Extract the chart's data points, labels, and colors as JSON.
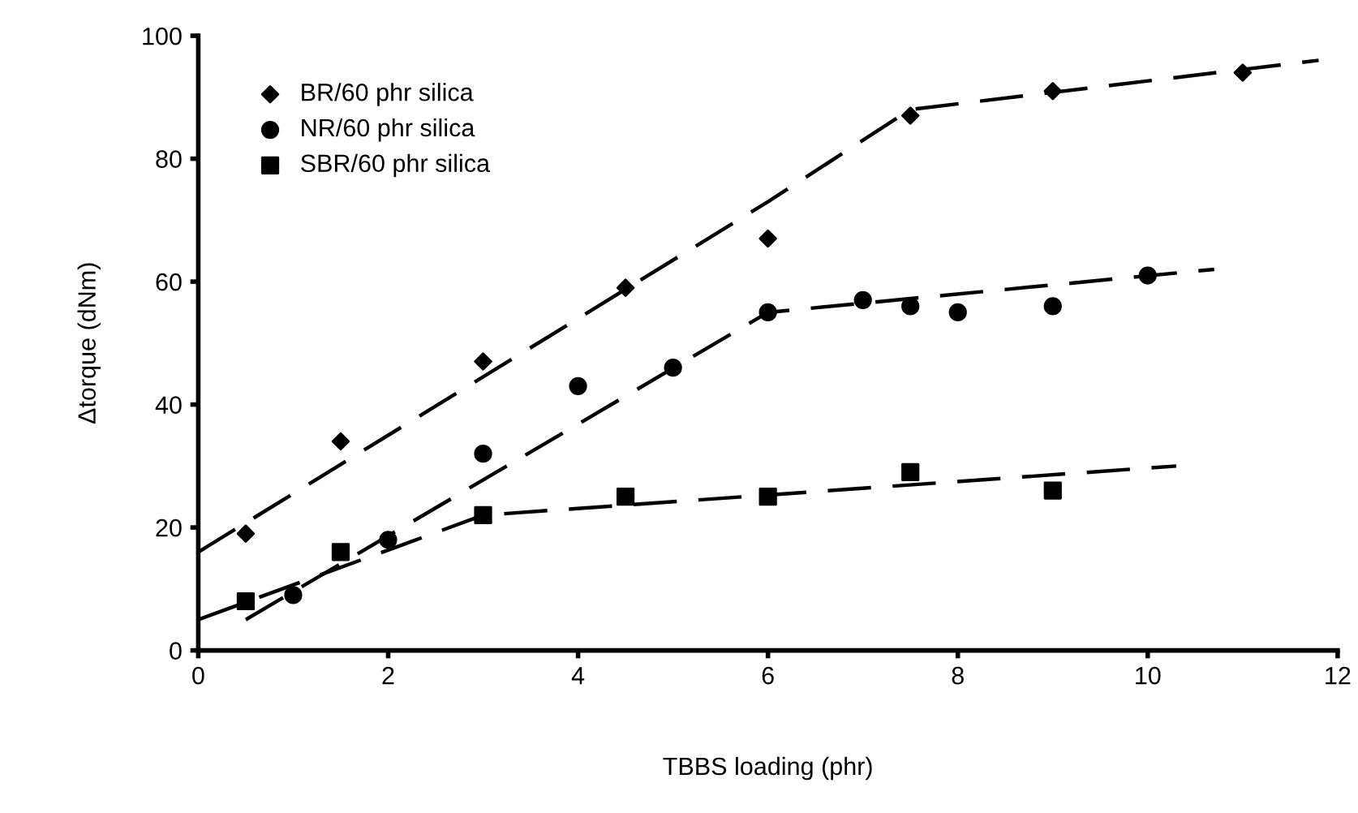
{
  "chart_data": {
    "type": "scatter",
    "xlabel": "TBBS loading (phr)",
    "ylabel": "Δtorque (dNm)",
    "xlim": [
      0,
      12
    ],
    "ylim": [
      0,
      100
    ],
    "xticks": [
      0,
      2,
      4,
      6,
      8,
      10,
      12
    ],
    "yticks": [
      0,
      20,
      40,
      60,
      80,
      100
    ],
    "grid": false,
    "legend": "top left",
    "series": [
      {
        "name": "BR/60 phr silica",
        "marker": "diamond",
        "color": "#000000",
        "x": [
          0.5,
          1.5,
          3,
          4.5,
          6,
          7.5,
          9,
          11
        ],
        "values": [
          19,
          34,
          47,
          59,
          67,
          87,
          91,
          94
        ]
      },
      {
        "name": "NR/60 phr silica",
        "marker": "circle",
        "color": "#000000",
        "x": [
          1,
          2,
          3,
          4,
          5,
          6,
          7,
          7.5,
          8,
          9,
          10
        ],
        "values": [
          9,
          18,
          32,
          43,
          46,
          55,
          57,
          56,
          55,
          56,
          61
        ]
      },
      {
        "name": "SBR/60 phr silica",
        "marker": "square",
        "color": "#000000",
        "x": [
          0.5,
          1.5,
          3,
          4.5,
          6,
          7.5,
          9
        ],
        "values": [
          8,
          16,
          22,
          25,
          25,
          29,
          26
        ]
      },
      {
        "type": "line",
        "line_style": "dashed",
        "color": "#000000",
        "x": [
          0,
          6,
          7.5,
          11.8
        ],
        "values": [
          16,
          73,
          88,
          96
        ]
      },
      {
        "type": "line",
        "line_style": "dashed",
        "color": "#000000",
        "x": [
          0.5,
          6,
          10.7
        ],
        "values": [
          5,
          55,
          62
        ]
      },
      {
        "type": "line",
        "line_style": "dashed",
        "color": "#000000",
        "x": [
          0,
          3,
          10.3
        ],
        "values": [
          5,
          22,
          30
        ]
      }
    ]
  }
}
